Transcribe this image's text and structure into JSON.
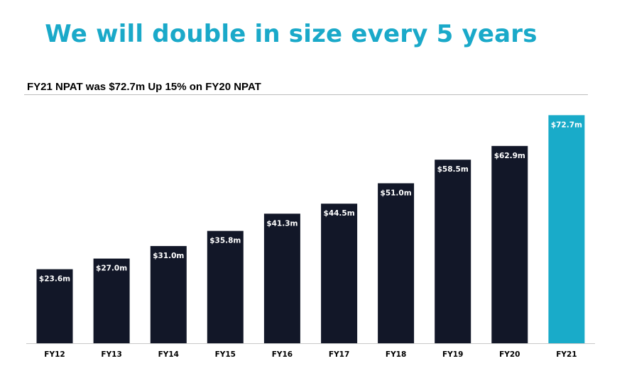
{
  "title": "We will double in size every 5 years",
  "subtitle": "FY21 NPAT was $72.7m Up 15% on FY20 NPAT",
  "colors": {
    "title": "#1aa9c9",
    "bar": "#121728",
    "highlight_bar": "#19abc9",
    "axis": "#c8c8c8"
  },
  "chart_data": {
    "type": "bar",
    "title": "FY21 NPAT was $72.7m Up 15% on FY20 NPAT",
    "xlabel": "",
    "ylabel": "",
    "ylim": [
      0,
      74
    ],
    "grid": false,
    "categories": [
      "FY12",
      "FY13",
      "FY14",
      "FY15",
      "FY16",
      "FY17",
      "FY18",
      "FY19",
      "FY20",
      "FY21"
    ],
    "values": [
      23.6,
      27.0,
      31.0,
      35.8,
      41.3,
      44.5,
      51.0,
      58.5,
      62.9,
      72.7
    ],
    "data_labels": [
      "$23.6m",
      "$27.0m",
      "$31.0m",
      "$35.8m",
      "$41.3m",
      "$44.5m",
      "$51.0m",
      "$58.5m",
      "$62.9m",
      "$72.7m"
    ],
    "highlight_category": "FY21"
  }
}
